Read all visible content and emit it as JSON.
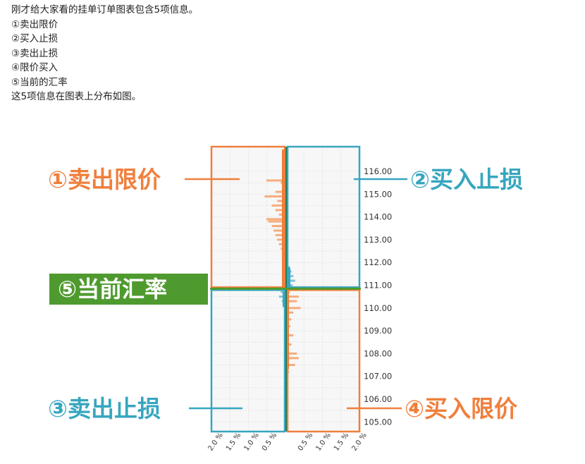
{
  "intro": {
    "lines": [
      "刚才给大家看的挂单订单图表包含5项信息。",
      "①卖出限价",
      "②买入止损",
      "③卖出止损",
      "④限价买入",
      "⑤当前的汇率",
      "这5项信息在图表上分布如图。"
    ]
  },
  "colors": {
    "orange": "#f07f3c",
    "orange_light": "#f5ad7d",
    "teal": "#37a6bf",
    "teal_light": "#7cc6d8",
    "green": "#4f9a2f",
    "grid": "#e4e4e4",
    "panel_bg": "#f7f7f7"
  },
  "callouts": {
    "sell_limit": "①卖出限价",
    "buy_stop": "②买入止损",
    "current_rate": "⑤当前汇率",
    "sell_stop": "③卖出止损",
    "buy_limit": "④买入限价"
  },
  "chart_data": {
    "type": "bar",
    "orientation": "horizontal",
    "current_price": 110.85,
    "y_ticks": [
      "116.00",
      "115.00",
      "114.00",
      "113.00",
      "112.00",
      "111.00",
      "110.00",
      "109.00",
      "108.00",
      "107.00",
      "106.00",
      "105.00"
    ],
    "ylim": [
      104.6,
      116.6
    ],
    "x_ticks_left": [
      "2.0 %",
      "1.5 %",
      "1.0 %",
      "0.5 %"
    ],
    "x_ticks_right": [
      "0.5 %",
      "1.0 %",
      "1.5 %",
      "2.0 %"
    ],
    "xlim": [
      0,
      2.0
    ],
    "series": [
      {
        "name": "①卖出限价",
        "side": "left",
        "data": [
          [
            116.4,
            0.05
          ],
          [
            116.1,
            0.08
          ],
          [
            115.8,
            0.12
          ],
          [
            115.6,
            0.55
          ],
          [
            115.5,
            0.15
          ],
          [
            115.3,
            0.1
          ],
          [
            115.1,
            0.3
          ],
          [
            114.9,
            0.6
          ],
          [
            114.7,
            0.25
          ],
          [
            114.5,
            0.4
          ],
          [
            114.3,
            0.3
          ],
          [
            114.1,
            0.2
          ],
          [
            113.9,
            0.55
          ],
          [
            113.8,
            0.5
          ],
          [
            113.6,
            0.4
          ],
          [
            113.4,
            0.35
          ],
          [
            113.2,
            0.3
          ],
          [
            113.0,
            0.25
          ],
          [
            112.8,
            0.2
          ],
          [
            112.6,
            0.15
          ],
          [
            112.4,
            0.12
          ],
          [
            112.2,
            0.08
          ],
          [
            112.0,
            0.06
          ],
          [
            111.8,
            0.05
          ],
          [
            111.5,
            0.04
          ]
        ]
      },
      {
        "name": "②买入止损",
        "side": "right",
        "data": [
          [
            112.0,
            0.05
          ],
          [
            111.8,
            0.1
          ],
          [
            111.6,
            0.15
          ],
          [
            111.4,
            0.2
          ],
          [
            111.2,
            0.25
          ],
          [
            111.0,
            0.18
          ]
        ]
      },
      {
        "name": "③卖出止损",
        "side": "left",
        "data": [
          [
            110.7,
            0.15
          ],
          [
            110.5,
            0.2
          ],
          [
            110.3,
            0.12
          ],
          [
            110.1,
            0.06
          ]
        ]
      },
      {
        "name": "④买入限价",
        "side": "right",
        "data": [
          [
            110.7,
            0.1
          ],
          [
            110.5,
            0.35
          ],
          [
            110.3,
            0.3
          ],
          [
            110.0,
            0.4
          ],
          [
            109.8,
            0.2
          ],
          [
            109.5,
            0.15
          ],
          [
            109.2,
            0.12
          ],
          [
            108.8,
            0.2
          ],
          [
            108.4,
            0.15
          ],
          [
            108.0,
            0.3
          ],
          [
            107.8,
            0.35
          ],
          [
            107.5,
            0.25
          ],
          [
            107.2,
            0.08
          ]
        ]
      }
    ]
  }
}
